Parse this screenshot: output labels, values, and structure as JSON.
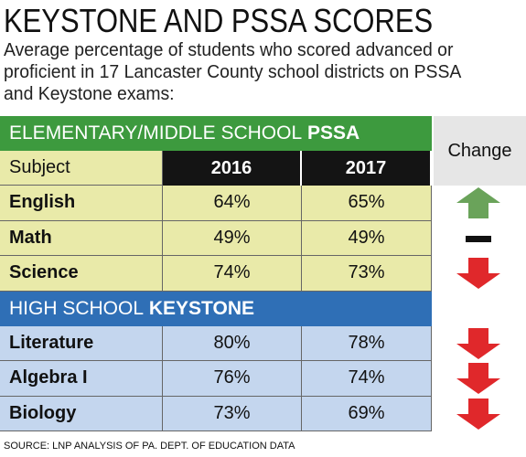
{
  "title": "KEYSTONE AND PSSA SCORES",
  "subtitle": [
    "Average percentage of students who scored advanced or",
    "proficient in 17 Lancaster County school districts on PSSA",
    "and Keystone exams:"
  ],
  "change_header": "Change",
  "sections": [
    {
      "label": "ELEMENTARY/MIDDLE SCHOOL",
      "emphasis": "PSSA",
      "color": "#3d9a3e",
      "row_color": "#e9eaa9",
      "columns": [
        "Subject",
        "2016",
        "2017"
      ],
      "rows": [
        {
          "subject": "English",
          "v2016": "64%",
          "v2017": "65%",
          "change": "up"
        },
        {
          "subject": "Math",
          "v2016": "49%",
          "v2017": "49%",
          "change": "none"
        },
        {
          "subject": "Science",
          "v2016": "74%",
          "v2017": "73%",
          "change": "down"
        }
      ]
    },
    {
      "label": "HIGH SCHOOL",
      "emphasis": "KEYSTONE",
      "color": "#2f6fb6",
      "row_color": "#c4d6ee",
      "rows": [
        {
          "subject": "Literature",
          "v2016": "80%",
          "v2017": "78%",
          "change": "down"
        },
        {
          "subject": "Algebra I",
          "v2016": "76%",
          "v2017": "74%",
          "change": "down"
        },
        {
          "subject": "Biology",
          "v2016": "73%",
          "v2017": "69%",
          "change": "down"
        }
      ]
    }
  ],
  "source": "SOURCE:  LNP ANALYSIS OF PA. DEPT. OF EDUCATION DATA"
}
